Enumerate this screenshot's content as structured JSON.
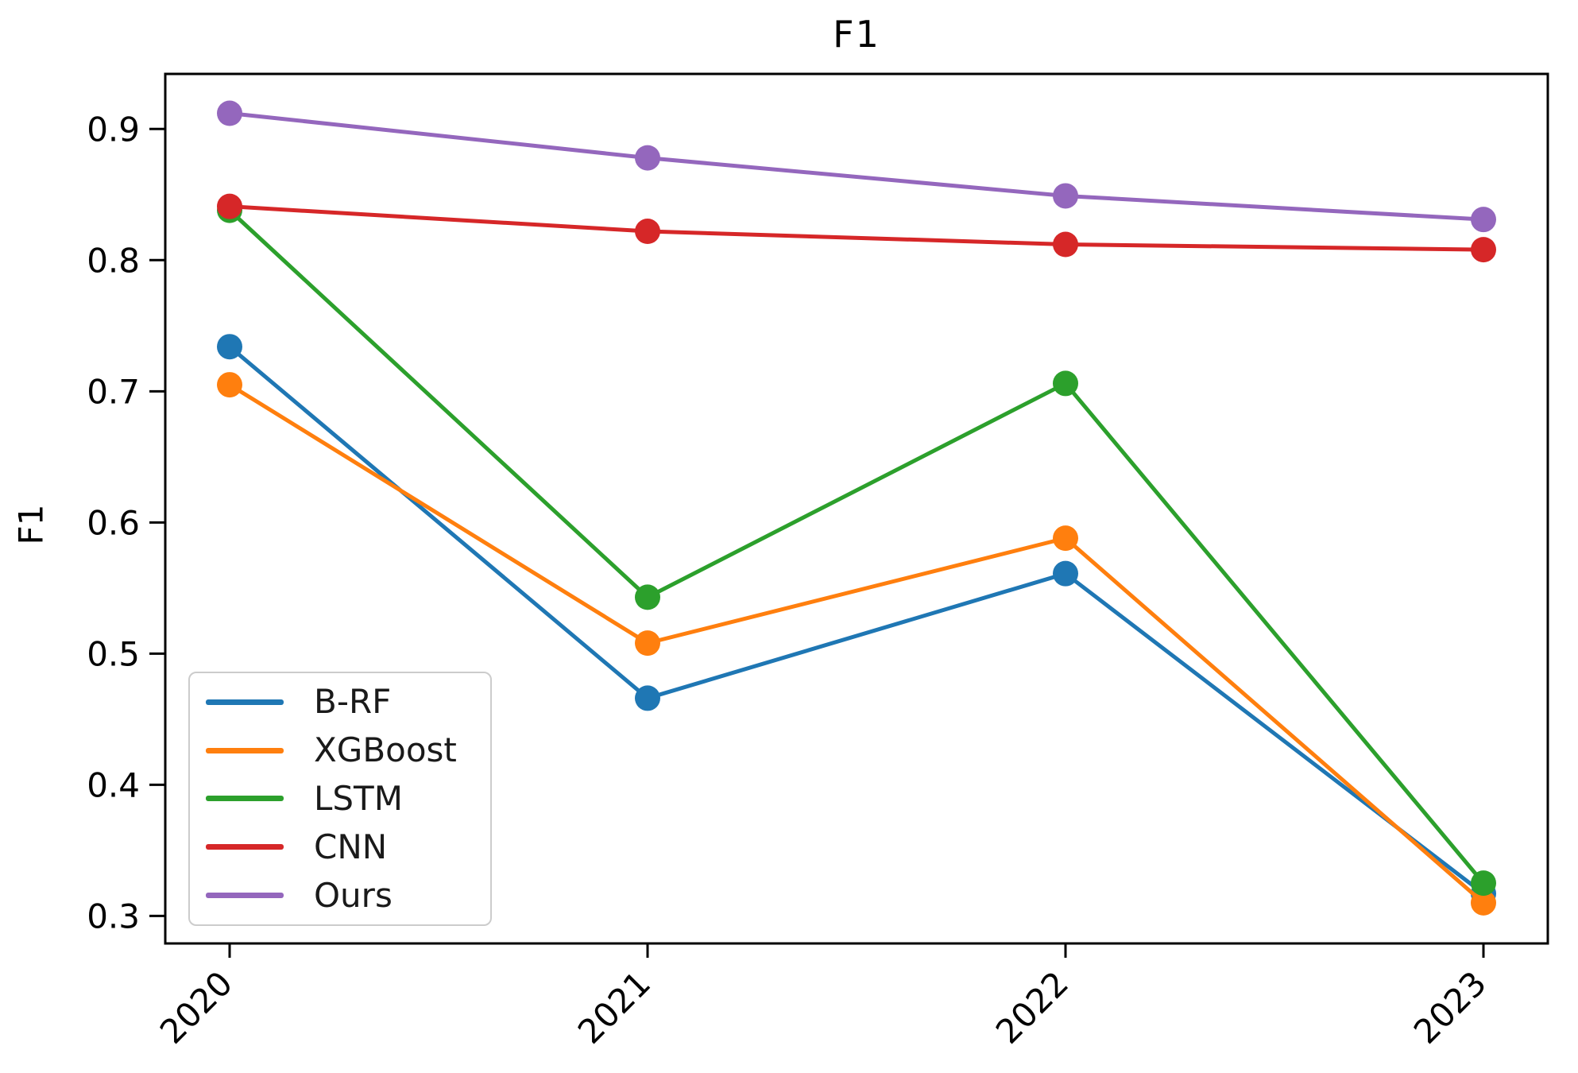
{
  "figure": {
    "background": "#ffffff",
    "text_color": "#000000",
    "spine_color": "#000000"
  },
  "chart_data": {
    "type": "line",
    "title": "F1",
    "xlabel": "",
    "ylabel": "F1",
    "categories": [
      "2020",
      "2021",
      "2022",
      "2023"
    ],
    "series": [
      {
        "name": "B-RF",
        "color": "#1f77b4",
        "values": [
          0.734,
          0.466,
          0.561,
          0.317
        ]
      },
      {
        "name": "XGBoost",
        "color": "#ff7f0e",
        "values": [
          0.705,
          0.508,
          0.588,
          0.31
        ]
      },
      {
        "name": "LSTM",
        "color": "#2ca02c",
        "values": [
          0.838,
          0.543,
          0.706,
          0.325
        ]
      },
      {
        "name": "CNN",
        "color": "#d62728",
        "values": [
          0.841,
          0.822,
          0.812,
          0.808
        ]
      },
      {
        "name": "Ours",
        "color": "#9467bd",
        "values": [
          0.912,
          0.878,
          0.849,
          0.831
        ]
      }
    ],
    "yticks": [
      0.3,
      0.4,
      0.5,
      0.6,
      0.7,
      0.8,
      0.9
    ],
    "ytick_labels": [
      "0.3",
      "0.4",
      "0.5",
      "0.6",
      "0.7",
      "0.8",
      "0.9"
    ],
    "ylim": [
      0.279,
      0.942
    ],
    "xtick_rotation_deg": 45,
    "grid": false,
    "legend_position": "lower left",
    "marker": "circle"
  }
}
